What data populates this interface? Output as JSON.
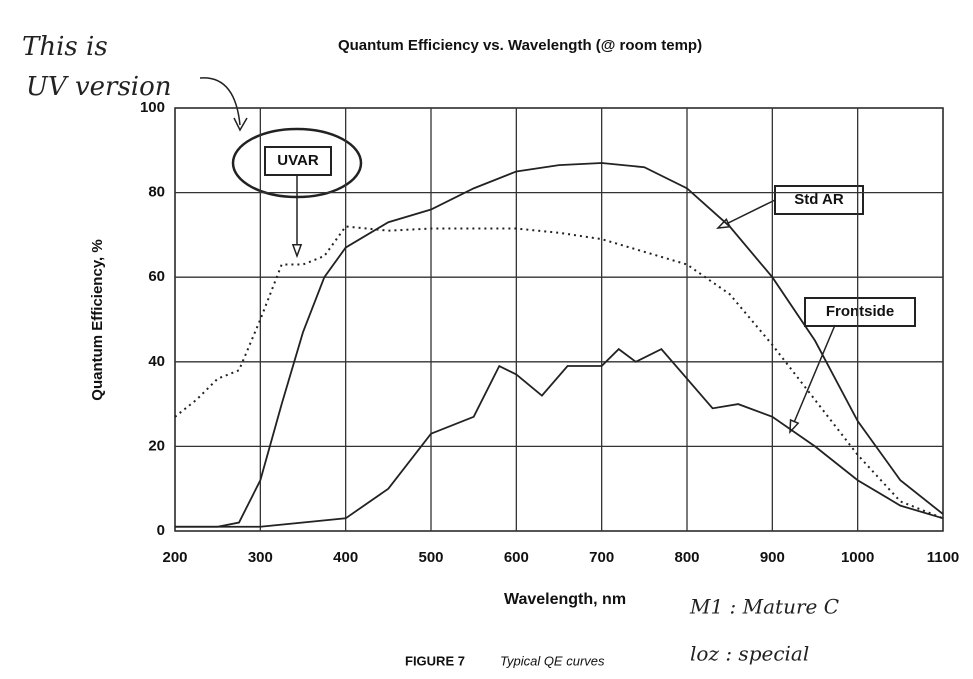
{
  "chart_data": {
    "type": "line",
    "title": "Quantum Efficiency vs. Wavelength (@ room temp)",
    "xlabel": "Wavelength, nm",
    "ylabel": "Quantum Efficiency, %",
    "xlim": [
      200,
      1100
    ],
    "ylim": [
      0,
      100
    ],
    "xticks": [
      200,
      300,
      400,
      500,
      600,
      700,
      800,
      900,
      1000,
      1100
    ],
    "yticks": [
      0,
      20,
      40,
      60,
      80,
      100
    ],
    "grid": true,
    "series": [
      {
        "name": "UVAR",
        "color": "#222222",
        "style": "dotted",
        "x": [
          200,
          225,
          250,
          275,
          300,
          325,
          350,
          375,
          400,
          450,
          500,
          550,
          600,
          650,
          700,
          750,
          800,
          850,
          900,
          950,
          1000,
          1050,
          1100
        ],
        "values": [
          27,
          31,
          36,
          38,
          50,
          63,
          63,
          65,
          72,
          71,
          71.5,
          71.5,
          71.5,
          70.5,
          69,
          66,
          63,
          56,
          44,
          31,
          18,
          7,
          3
        ]
      },
      {
        "name": "Std AR",
        "color": "#222222",
        "style": "solid",
        "x": [
          200,
          250,
          275,
          300,
          325,
          350,
          375,
          400,
          450,
          500,
          550,
          600,
          650,
          700,
          750,
          800,
          850,
          900,
          950,
          1000,
          1050,
          1100
        ],
        "values": [
          1,
          1,
          2,
          12,
          30,
          47,
          60,
          67,
          73,
          76,
          81,
          85,
          86.5,
          87,
          86,
          81,
          72,
          60,
          45,
          26,
          12,
          4
        ]
      },
      {
        "name": "Frontside",
        "color": "#222222",
        "style": "solid",
        "x": [
          200,
          300,
          400,
          450,
          500,
          550,
          580,
          600,
          630,
          660,
          700,
          720,
          740,
          770,
          800,
          830,
          860,
          900,
          950,
          1000,
          1050,
          1100
        ],
        "values": [
          1,
          1,
          3,
          10,
          23,
          27,
          39,
          37,
          32,
          39,
          39,
          43,
          40,
          43,
          36,
          29,
          30,
          27,
          20,
          12,
          6,
          3
        ]
      }
    ],
    "handwritten": [
      "This is",
      "UV version",
      "M1 :  Mature C",
      "loz :  special"
    ],
    "caption": {
      "figure": "FIGURE 7",
      "text": "Typical QE curves"
    }
  }
}
